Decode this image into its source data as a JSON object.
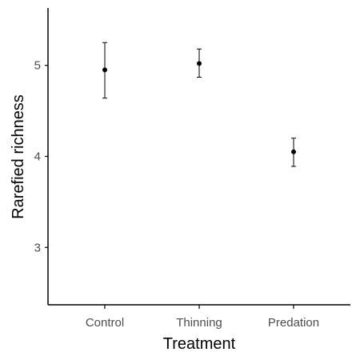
{
  "chart_data": {
    "type": "scatter",
    "title": "",
    "xlabel": "Treatment",
    "ylabel": "Rarefied richness",
    "categories": [
      "Control",
      "Thinning",
      "Predation"
    ],
    "values": [
      4.95,
      5.02,
      4.05
    ],
    "error_lower": [
      4.64,
      4.87,
      3.89
    ],
    "error_upper": [
      5.25,
      5.18,
      4.2
    ],
    "y_ticks": [
      3,
      4,
      5
    ],
    "ylim": [
      2.37,
      5.63
    ],
    "grid": false,
    "legend": "none",
    "colors": {
      "point": "#000000",
      "axis": "#000000",
      "tick_text": "#4d4d4d"
    }
  }
}
